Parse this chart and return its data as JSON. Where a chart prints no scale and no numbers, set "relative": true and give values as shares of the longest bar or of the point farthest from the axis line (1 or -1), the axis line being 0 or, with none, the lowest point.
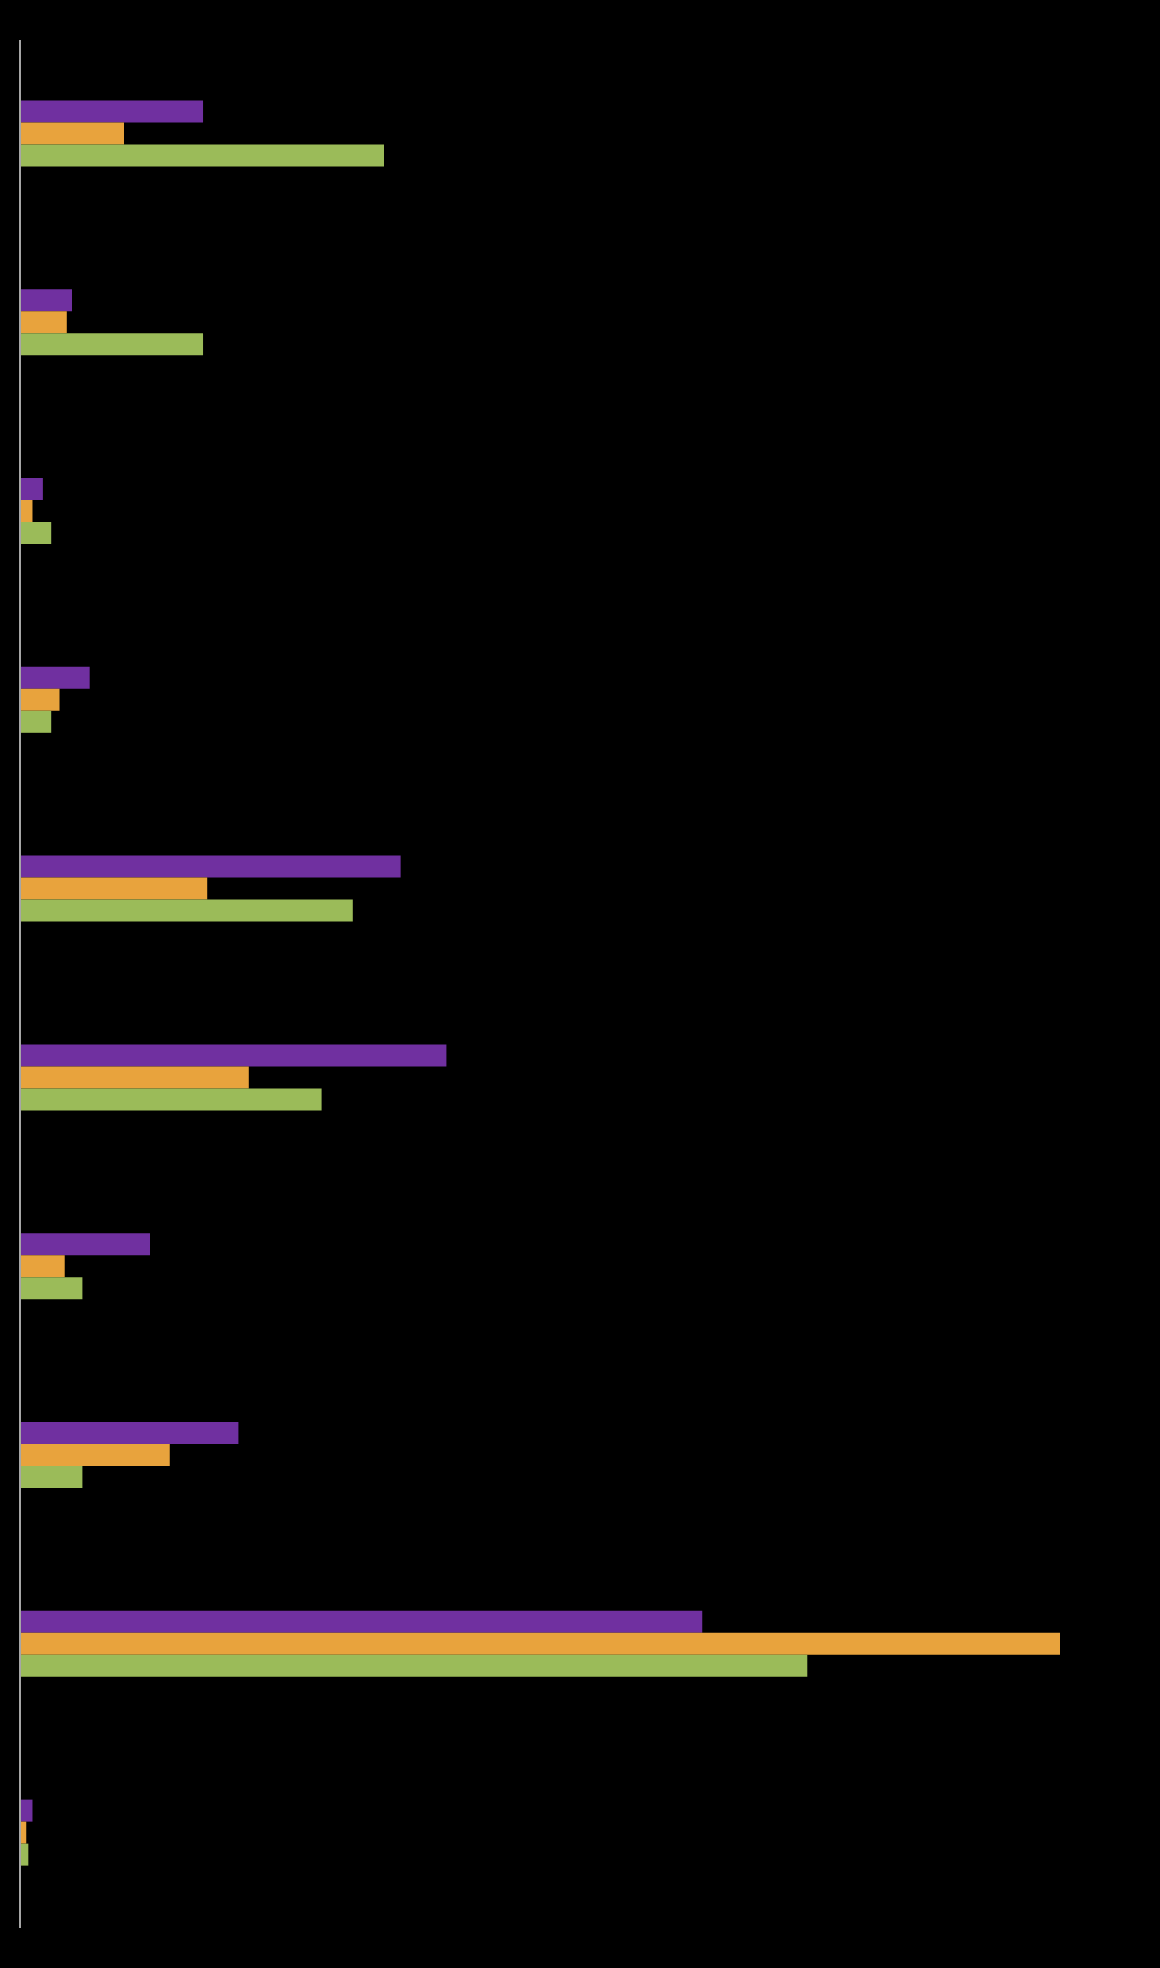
{
  "chart_data": {
    "type": "bar",
    "orientation": "horizontal",
    "relative": true,
    "legend": false,
    "grid": false,
    "categories": [
      null,
      null,
      null,
      null,
      null,
      null,
      null,
      null,
      null,
      null
    ],
    "series": [
      {
        "color": "#7030a0",
        "values": [
          0.176,
          0.05,
          0.022,
          0.067,
          0.366,
          0.41,
          0.125,
          0.21,
          0.656,
          0.012
        ]
      },
      {
        "color": "#e8a33d",
        "values": [
          0.1,
          0.045,
          0.012,
          0.038,
          0.18,
          0.22,
          0.043,
          0.144,
          1,
          0.006
        ]
      },
      {
        "color": "#9bbb59",
        "values": [
          0.35,
          0.176,
          0.03,
          0.03,
          0.32,
          0.29,
          0.06,
          0.06,
          0.757,
          0.008
        ]
      }
    ]
  }
}
